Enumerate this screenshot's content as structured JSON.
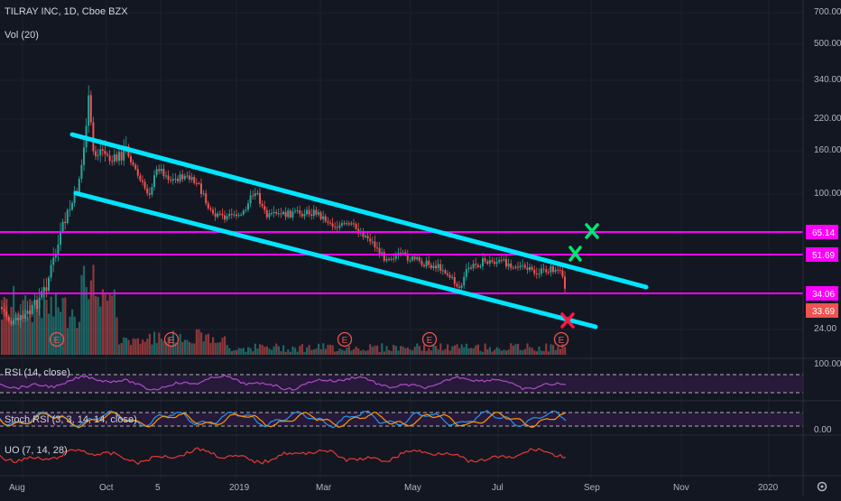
{
  "header": {
    "symbol": "TILRAY INC, 1D, Cboe BZX",
    "volume": "Vol (20)"
  },
  "indicators": {
    "rsi": "RSI (14, close)",
    "stoch": "Stoch RSI (3, 3, 14, 14, close)",
    "uo": "UO (7, 14, 28)"
  },
  "colors": {
    "background": "#131722",
    "up": "#26a69a",
    "down": "#ef5350",
    "channel": "#00e5ff",
    "level": "#ff00ff",
    "rsi": "#9c27b0",
    "target": "#00e676",
    "stop": "#ff1744"
  },
  "chart_data": {
    "type": "candlestick",
    "price_axis": {
      "scale": "log",
      "ticks": [
        "700.00",
        "500.00",
        "340.00",
        "220.00",
        "160.00",
        "100.00",
        "24.00"
      ]
    },
    "price_labels": [
      "65.14",
      "51.69",
      "34.06",
      "33.69"
    ],
    "time_axis": {
      "ticks": [
        "Aug",
        "Oct",
        "5",
        "2019",
        "Mar",
        "May",
        "Jul",
        "Sep",
        "Nov",
        "2020"
      ]
    },
    "earnings_marker": "E",
    "earnings_count": 5,
    "horizontal_levels": [
      65.14,
      51.69,
      34.06
    ],
    "rsi_axis": [
      "100.00"
    ],
    "stoch_axis": [
      "0.00"
    ]
  }
}
